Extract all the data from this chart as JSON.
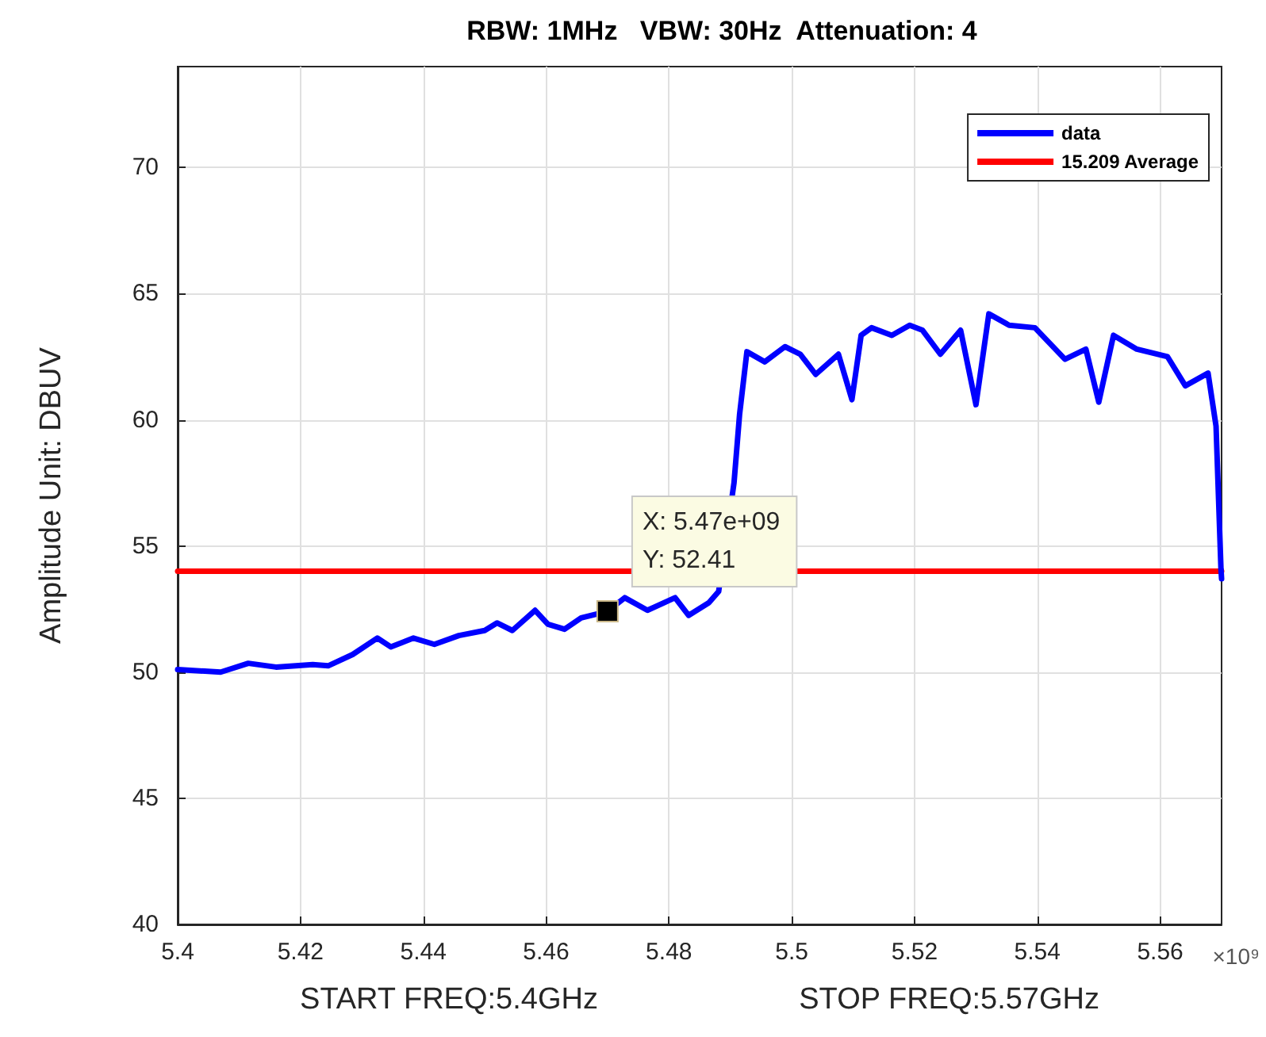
{
  "chart_data": {
    "type": "line",
    "title": "RBW: 1MHz   VBW: 30Hz  Attenuation: 4",
    "xlabel": "START FREQ:5.4GHz                        STOP FREQ:5.57GHz",
    "ylabel": "Amplitude Unit: DBUV",
    "series": [
      {
        "name": "data",
        "color": "#0000ff",
        "x": [
          5.4,
          5.407,
          5.4115,
          5.416,
          5.422,
          5.4245,
          5.4285,
          5.4325,
          5.4347,
          5.4384,
          5.4418,
          5.4458,
          5.45,
          5.452,
          5.4545,
          5.4582,
          5.4603,
          5.463,
          5.4657,
          5.47,
          5.4728,
          5.4765,
          5.481,
          5.4832,
          5.4865,
          5.4881,
          5.4906,
          5.4915,
          5.4927,
          5.4956,
          5.4989,
          5.5014,
          5.5039,
          5.5076,
          5.5098,
          5.5113,
          5.513,
          5.5163,
          5.5192,
          5.5213,
          5.5242,
          5.5275,
          5.53,
          5.5321,
          5.5354,
          5.5396,
          5.5445,
          5.5479,
          5.55,
          5.5524,
          5.5562,
          5.5612,
          5.5641,
          5.5678,
          5.5691,
          5.5699,
          5.57
        ],
        "values": [
          50.1,
          50.0,
          50.35,
          50.2,
          50.3,
          50.25,
          50.7,
          51.35,
          51.0,
          51.35,
          51.1,
          51.45,
          51.65,
          51.95,
          51.65,
          52.45,
          51.9,
          51.7,
          52.15,
          52.41,
          52.95,
          52.45,
          52.95,
          52.25,
          52.75,
          53.2,
          57.5,
          60.2,
          62.7,
          62.3,
          62.9,
          62.6,
          61.8,
          62.6,
          60.8,
          63.35,
          63.65,
          63.35,
          63.75,
          63.55,
          62.6,
          63.55,
          60.6,
          64.2,
          63.75,
          63.65,
          62.4,
          62.8,
          60.7,
          63.35,
          62.8,
          62.5,
          61.35,
          61.85,
          59.75,
          54.1,
          53.7
        ]
      },
      {
        "name": "15.209 Average",
        "color": "#ff0000",
        "x": [
          5.4,
          5.57
        ],
        "values": [
          54,
          54
        ]
      }
    ],
    "xlim": [
      5.4,
      5.57
    ],
    "xticks": [
      5.4,
      5.42,
      5.44,
      5.46,
      5.48,
      5.5,
      5.52,
      5.54,
      5.56
    ],
    "ylim": [
      40,
      74
    ],
    "yticks": [
      40,
      45,
      50,
      55,
      60,
      65,
      70
    ],
    "annotations": [
      "×10⁹",
      {
        "text": "X: 5.47e+09\nY: 52.41",
        "x": 5.47,
        "y": 52.41
      }
    ],
    "grid": true,
    "legend": "top right",
    "marker": "none",
    "line_style": "solid"
  }
}
